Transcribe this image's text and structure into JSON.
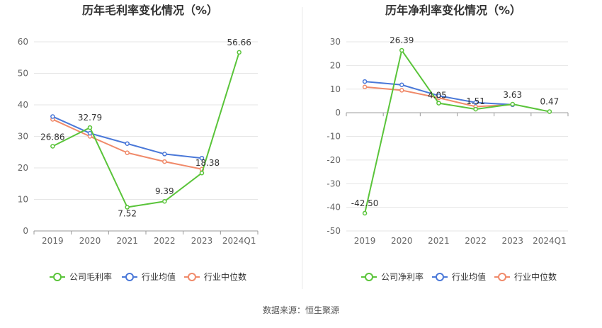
{
  "footer": {
    "source": "数据来源：恒生聚源"
  },
  "chart_data": [
    {
      "type": "line",
      "title": "历年毛利率变化情况（%）",
      "categories": [
        "2019",
        "2020",
        "2021",
        "2022",
        "2023",
        "2024Q1"
      ],
      "ylim": [
        0,
        60
      ],
      "yticks": [
        0,
        10,
        20,
        30,
        40,
        50,
        60
      ],
      "grid": true,
      "legend": "bottom-center",
      "series": [
        {
          "name": "公司毛利率",
          "color": "#5ac43a",
          "values": [
            26.86,
            32.79,
            7.52,
            9.39,
            18.38,
            56.66
          ],
          "labels": [
            "26.86",
            "32.79",
            "7.52",
            "9.39",
            "18.38",
            "56.66"
          ]
        },
        {
          "name": "行业均值",
          "color": "#4a78d8",
          "values": [
            36.3,
            31.0,
            27.7,
            24.4,
            23.1,
            null
          ]
        },
        {
          "name": "行业中位数",
          "color": "#f08a6a",
          "values": [
            35.4,
            30.0,
            24.8,
            22.0,
            19.6,
            null
          ]
        }
      ]
    },
    {
      "type": "line",
      "title": "历年净利率变化情况（%）",
      "categories": [
        "2019",
        "2020",
        "2021",
        "2022",
        "2023",
        "2024Q1"
      ],
      "ylim": [
        -50,
        30
      ],
      "yticks": [
        -50,
        -40,
        -30,
        -20,
        -10,
        0,
        10,
        20,
        30
      ],
      "grid": true,
      "legend": "bottom-center",
      "series": [
        {
          "name": "公司净利率",
          "color": "#5ac43a",
          "values": [
            -42.5,
            26.39,
            4.05,
            1.51,
            3.63,
            0.47
          ],
          "labels": [
            "-42.50",
            "26.39",
            "4.05",
            "1.51",
            "3.63",
            "0.47"
          ]
        },
        {
          "name": "行业均值",
          "color": "#4a78d8",
          "values": [
            13.2,
            11.8,
            7.2,
            4.3,
            3.4,
            null
          ]
        },
        {
          "name": "行业中位数",
          "color": "#f08a6a",
          "values": [
            10.9,
            9.5,
            6.3,
            2.6,
            3.4,
            null
          ]
        }
      ]
    }
  ]
}
